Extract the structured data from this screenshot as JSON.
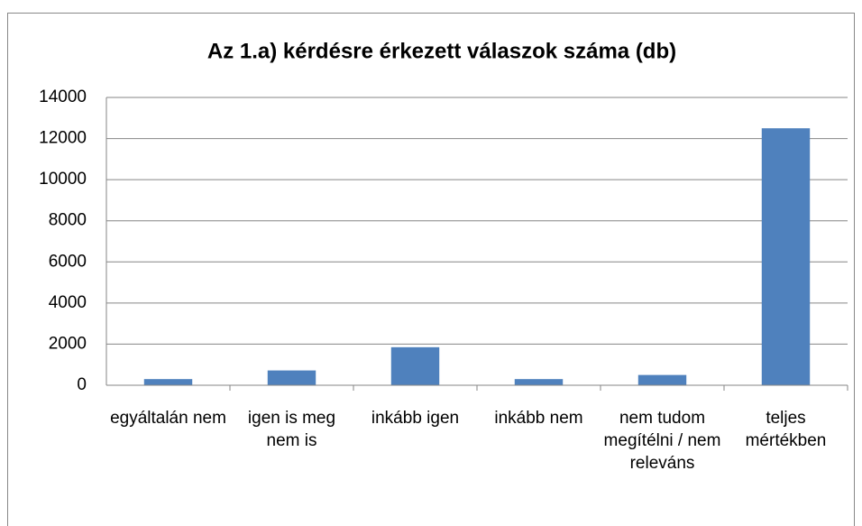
{
  "chart_data": {
    "type": "bar",
    "title": "Az 1.a) kérdésre érkezett válaszok száma (db)",
    "categories": [
      "egyáltalán nem",
      "igen is meg nem is",
      "inkább igen",
      "inkább nem",
      "nem tudom megítélni / nem releváns",
      "teljes mértékben"
    ],
    "values": [
      300,
      720,
      1850,
      300,
      500,
      12500
    ],
    "color": "#4f81bd",
    "ylim": [
      0,
      14000
    ],
    "yticks": [
      0,
      2000,
      4000,
      6000,
      8000,
      10000,
      12000,
      14000
    ],
    "grid": true
  }
}
